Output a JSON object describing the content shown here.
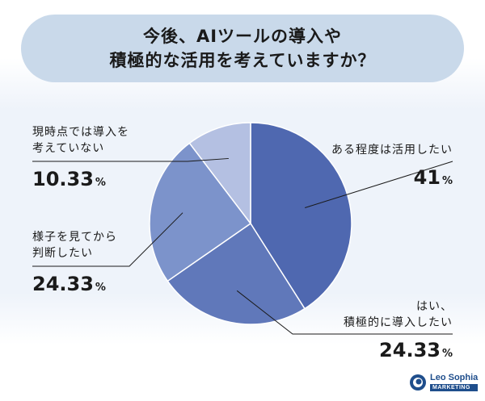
{
  "title": {
    "line1": "今後、AIツールの導入や",
    "line2": "積極的な活用を考えていますか？"
  },
  "chart_data": {
    "type": "pie",
    "start_angle_deg": 0,
    "direction": "clockwise",
    "unit": "%",
    "slices": [
      {
        "label_lines": [
          "ある程度は活用したい"
        ],
        "value": 41,
        "value_text": "41",
        "color": "#4f68b0"
      },
      {
        "label_lines": [
          "はい、",
          "積極的に導入したい"
        ],
        "value": 24.33,
        "value_text": "24.33",
        "color": "#6078ba"
      },
      {
        "label_lines": [
          "様子を見てから",
          "判断したい"
        ],
        "value": 24.33,
        "value_text": "24.33",
        "color": "#7c93cb"
      },
      {
        "label_lines": [
          "現時点では導入を",
          "考えていない"
        ],
        "value": 10.33,
        "value_text": "10.33",
        "color": "#b4c0e2"
      }
    ]
  },
  "logo": {
    "name": "Leo Sophia",
    "sub": "MARKETING"
  }
}
